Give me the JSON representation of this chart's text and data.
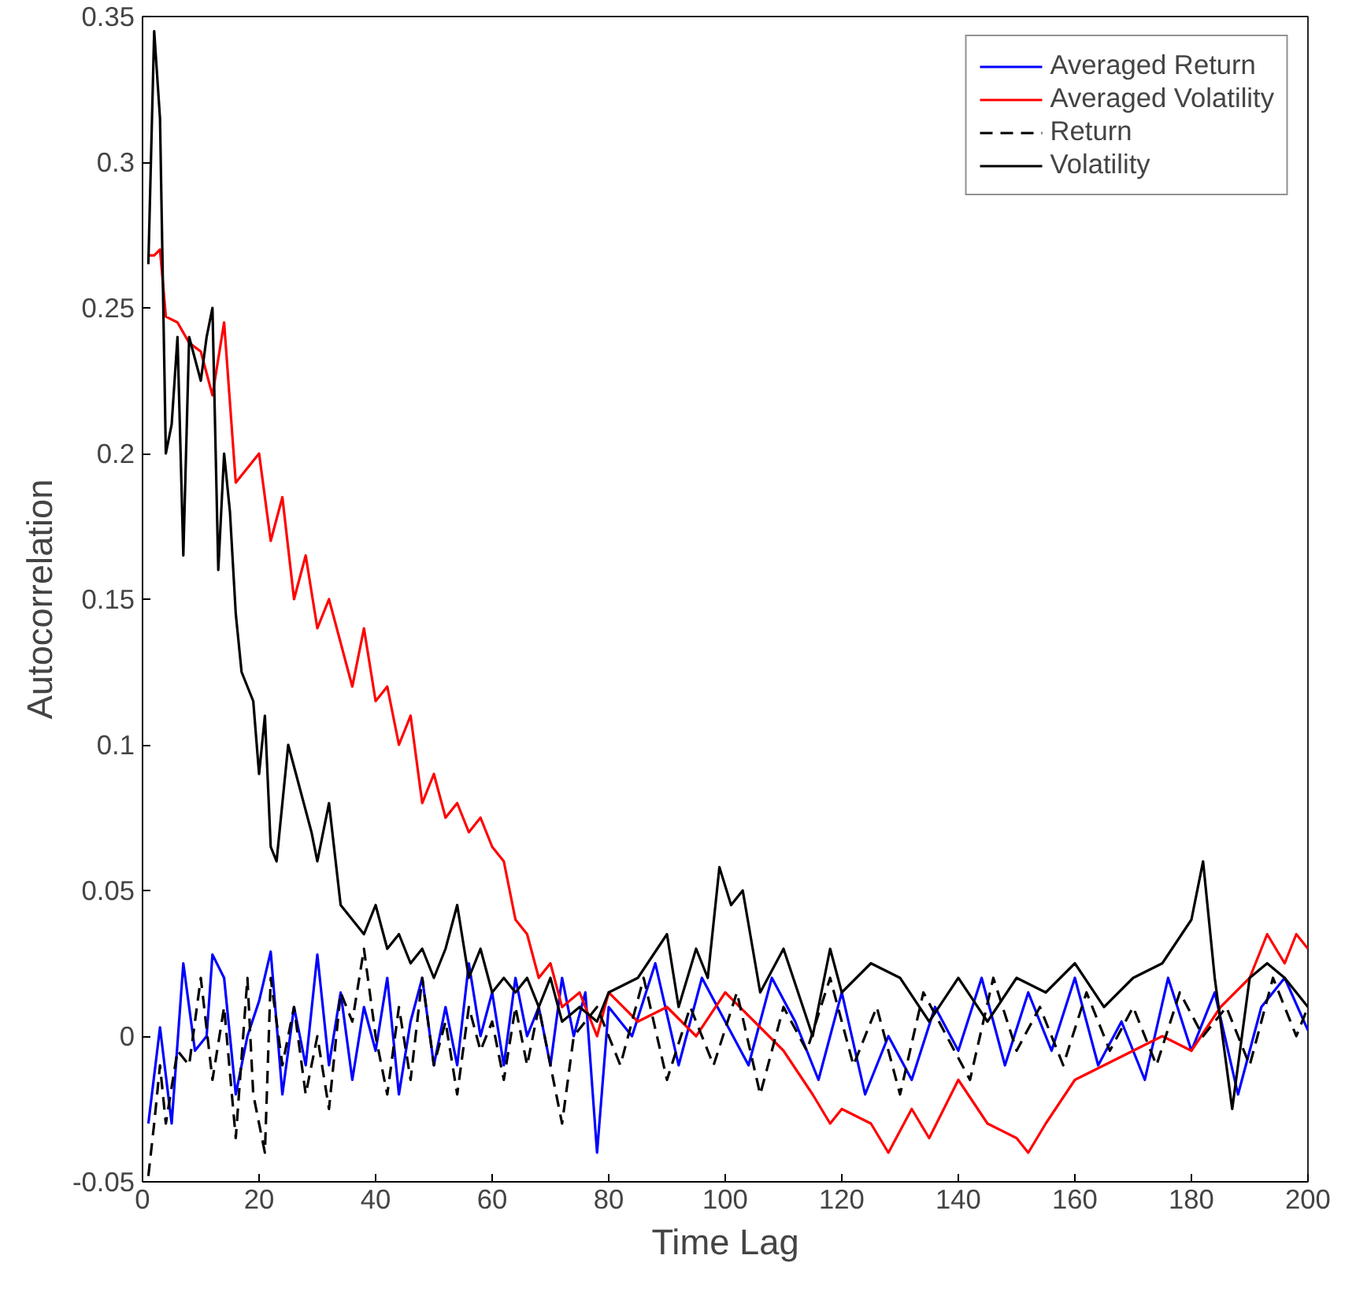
{
  "chart_data": {
    "type": "line",
    "xlabel": "Time Lag",
    "ylabel": "Autocorrelation",
    "xlim": [
      0,
      200
    ],
    "ylim": [
      -0.05,
      0.35
    ],
    "xticks": [
      0,
      20,
      40,
      60,
      80,
      100,
      120,
      140,
      160,
      180,
      200
    ],
    "yticks": [
      -0.05,
      0,
      0.05,
      0.1,
      0.15,
      0.2,
      0.25,
      0.3,
      0.35
    ],
    "grid": false,
    "legend": "top right",
    "marker": "none",
    "series": [
      {
        "name": "Averaged Return",
        "color": "#0000ff",
        "line_style": "solid",
        "x": [
          1,
          3,
          5,
          7,
          9,
          11,
          12,
          14,
          16,
          18,
          20,
          22,
          24,
          26,
          28,
          30,
          32,
          34,
          36,
          38,
          40,
          42,
          44,
          46,
          48,
          50,
          52,
          54,
          56,
          58,
          60,
          62,
          64,
          66,
          68,
          70,
          72,
          74,
          76,
          78,
          80,
          84,
          88,
          92,
          96,
          100,
          104,
          108,
          112,
          116,
          120,
          124,
          128,
          132,
          136,
          140,
          144,
          148,
          152,
          156,
          160,
          164,
          168,
          172,
          176,
          180,
          184,
          188,
          192,
          196,
          200
        ],
        "values": [
          -0.03,
          0.003,
          -0.03,
          0.025,
          -0.005,
          0.0,
          0.028,
          0.02,
          -0.02,
          0.0,
          0.012,
          0.029,
          -0.02,
          0.01,
          -0.01,
          0.028,
          -0.01,
          0.015,
          -0.015,
          0.01,
          -0.005,
          0.02,
          -0.02,
          0.005,
          0.02,
          -0.01,
          0.01,
          -0.01,
          0.025,
          0.0,
          0.015,
          -0.01,
          0.02,
          0.0,
          0.01,
          -0.01,
          0.02,
          0.0,
          0.015,
          -0.04,
          0.01,
          0.0,
          0.025,
          -0.01,
          0.02,
          0.005,
          -0.01,
          0.02,
          0.005,
          -0.015,
          0.015,
          -0.02,
          0.0,
          -0.015,
          0.01,
          -0.005,
          0.02,
          -0.01,
          0.015,
          -0.005,
          0.02,
          -0.01,
          0.005,
          -0.015,
          0.02,
          -0.005,
          0.015,
          -0.02,
          0.01,
          0.02,
          0.002
        ]
      },
      {
        "name": "Averaged Volatility",
        "color": "#ff0000",
        "line_style": "solid",
        "x": [
          1,
          2,
          3,
          4,
          6,
          8,
          10,
          12,
          14,
          16,
          18,
          20,
          22,
          24,
          26,
          28,
          30,
          32,
          34,
          36,
          38,
          40,
          42,
          44,
          46,
          48,
          50,
          52,
          54,
          56,
          58,
          60,
          62,
          64,
          66,
          68,
          70,
          72,
          75,
          78,
          80,
          85,
          90,
          95,
          100,
          105,
          110,
          115,
          118,
          120,
          125,
          128,
          132,
          135,
          140,
          145,
          150,
          152,
          155,
          160,
          165,
          170,
          175,
          180,
          185,
          190,
          193,
          196,
          198,
          200
        ],
        "values": [
          0.268,
          0.268,
          0.27,
          0.247,
          0.245,
          0.238,
          0.235,
          0.22,
          0.245,
          0.19,
          0.195,
          0.2,
          0.17,
          0.185,
          0.15,
          0.165,
          0.14,
          0.15,
          0.135,
          0.12,
          0.14,
          0.115,
          0.12,
          0.1,
          0.11,
          0.08,
          0.09,
          0.075,
          0.08,
          0.07,
          0.075,
          0.065,
          0.06,
          0.04,
          0.035,
          0.02,
          0.025,
          0.01,
          0.015,
          0.0,
          0.015,
          0.005,
          0.01,
          0.0,
          0.015,
          0.005,
          -0.005,
          -0.02,
          -0.03,
          -0.025,
          -0.03,
          -0.04,
          -0.025,
          -0.035,
          -0.015,
          -0.03,
          -0.035,
          -0.04,
          -0.03,
          -0.015,
          -0.01,
          -0.005,
          0.0,
          -0.005,
          0.01,
          0.02,
          0.035,
          0.025,
          0.035,
          0.03
        ]
      },
      {
        "name": "Return",
        "color": "#000000",
        "line_style": "dashed",
        "x": [
          1,
          2,
          3,
          4,
          6,
          8,
          10,
          12,
          14,
          16,
          18,
          19,
          21,
          22,
          24,
          26,
          28,
          30,
          32,
          34,
          36,
          38,
          40,
          42,
          44,
          46,
          48,
          50,
          52,
          54,
          56,
          58,
          60,
          62,
          64,
          66,
          68,
          70,
          72,
          74,
          78,
          82,
          86,
          90,
          94,
          98,
          102,
          106,
          110,
          114,
          118,
          122,
          126,
          130,
          134,
          138,
          142,
          146,
          150,
          154,
          158,
          162,
          166,
          170,
          174,
          178,
          182,
          186,
          190,
          194,
          198,
          200
        ],
        "values": [
          -0.048,
          -0.03,
          -0.01,
          -0.03,
          -0.005,
          -0.01,
          0.02,
          -0.015,
          0.01,
          -0.035,
          0.02,
          -0.02,
          -0.04,
          0.02,
          -0.01,
          0.01,
          -0.02,
          0.0,
          -0.025,
          0.015,
          0.005,
          0.03,
          0.0,
          -0.02,
          0.01,
          -0.015,
          0.02,
          -0.01,
          0.005,
          -0.02,
          0.01,
          -0.005,
          0.005,
          -0.015,
          0.01,
          -0.01,
          0.01,
          -0.01,
          -0.03,
          0.0,
          0.01,
          -0.01,
          0.02,
          -0.015,
          0.01,
          -0.01,
          0.015,
          -0.02,
          0.01,
          -0.005,
          0.02,
          -0.01,
          0.01,
          -0.02,
          0.015,
          0.0,
          -0.015,
          0.02,
          -0.005,
          0.01,
          -0.01,
          0.015,
          -0.005,
          0.01,
          -0.01,
          0.015,
          0.0,
          0.01,
          -0.01,
          0.02,
          0.0,
          0.01
        ]
      },
      {
        "name": "Volatility",
        "color": "#000000",
        "line_style": "solid",
        "x": [
          1,
          2,
          3,
          4,
          5,
          6,
          7,
          8,
          10,
          11,
          12,
          13,
          14,
          15,
          16,
          17,
          19,
          20,
          21,
          22,
          23,
          24,
          25,
          27,
          29,
          30,
          32,
          34,
          36,
          38,
          40,
          42,
          44,
          46,
          48,
          50,
          52,
          54,
          56,
          58,
          60,
          62,
          64,
          66,
          68,
          70,
          72,
          75,
          78,
          80,
          85,
          90,
          92,
          95,
          97,
          99,
          101,
          103,
          106,
          110,
          115,
          118,
          120,
          125,
          130,
          135,
          140,
          145,
          150,
          155,
          160,
          165,
          170,
          175,
          180,
          182,
          184,
          187,
          190,
          193,
          196,
          200
        ],
        "values": [
          0.265,
          0.345,
          0.315,
          0.2,
          0.21,
          0.24,
          0.165,
          0.24,
          0.225,
          0.24,
          0.25,
          0.16,
          0.2,
          0.18,
          0.145,
          0.125,
          0.115,
          0.09,
          0.11,
          0.065,
          0.06,
          0.08,
          0.1,
          0.085,
          0.07,
          0.06,
          0.08,
          0.045,
          0.04,
          0.035,
          0.045,
          0.03,
          0.035,
          0.025,
          0.03,
          0.02,
          0.03,
          0.045,
          0.02,
          0.03,
          0.015,
          0.02,
          0.015,
          0.02,
          0.01,
          0.02,
          0.005,
          0.01,
          0.005,
          0.015,
          0.02,
          0.035,
          0.01,
          0.03,
          0.02,
          0.058,
          0.045,
          0.05,
          0.015,
          0.03,
          0.0,
          0.03,
          0.015,
          0.025,
          0.02,
          0.005,
          0.02,
          0.005,
          0.02,
          0.015,
          0.025,
          0.01,
          0.02,
          0.025,
          0.04,
          0.06,
          0.02,
          -0.025,
          0.02,
          0.025,
          0.02,
          0.01
        ]
      }
    ]
  }
}
